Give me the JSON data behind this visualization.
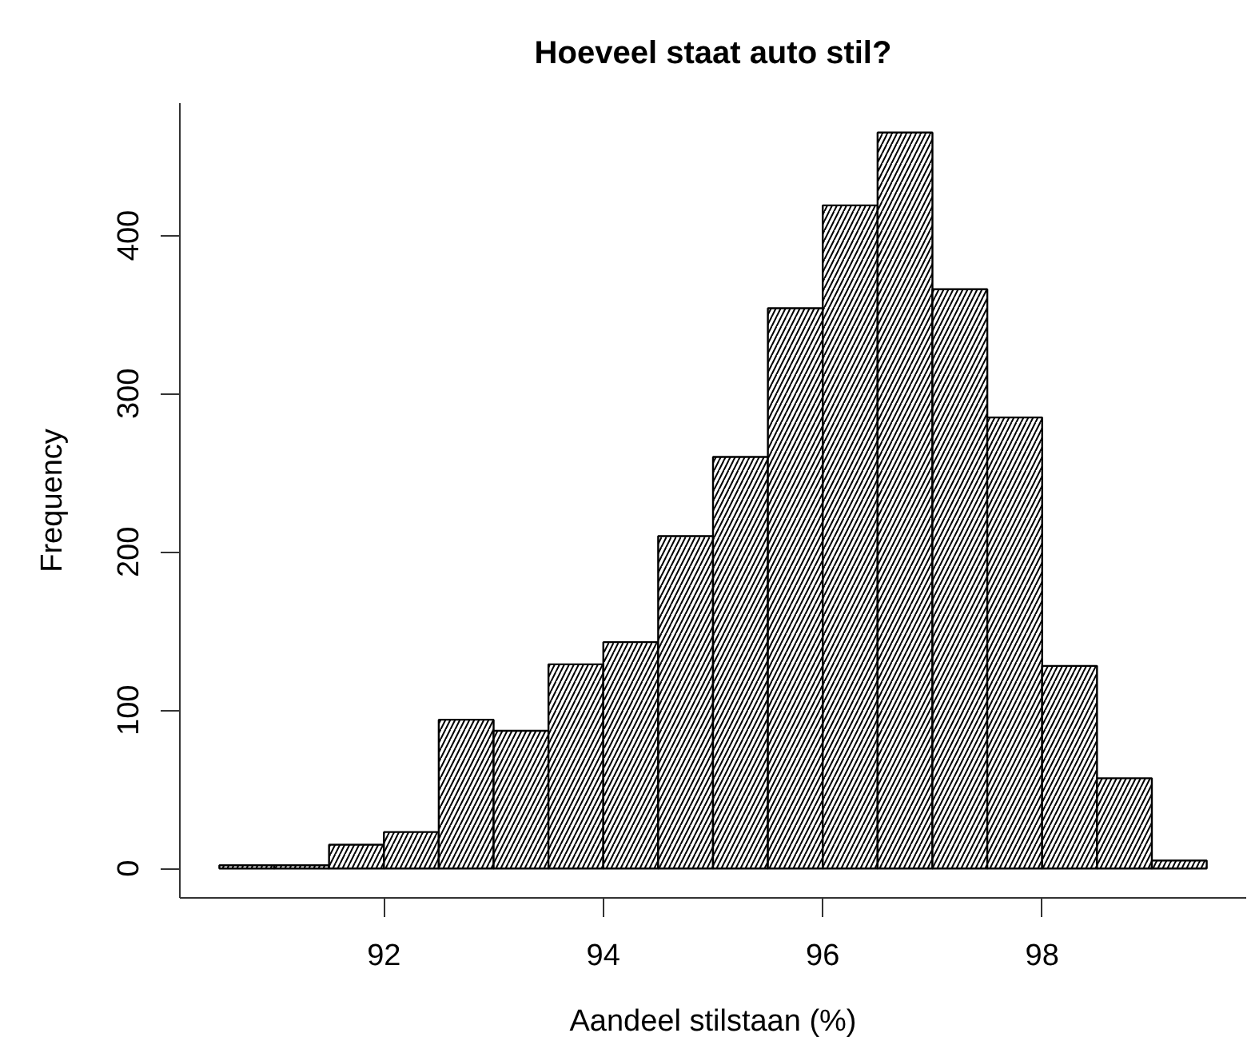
{
  "chart_data": {
    "type": "histogram",
    "title": "Hoeveel staat auto stil?",
    "xlabel": "Aandeel stilstaan (%)",
    "ylabel": "Frequency",
    "bins": [
      90.5,
      91.0,
      91.5,
      92.0,
      92.5,
      93.0,
      93.5,
      94.0,
      94.5,
      95.0,
      95.5,
      96.0,
      96.5,
      97.0,
      97.5,
      98.0,
      98.5,
      99.0,
      99.5
    ],
    "values": [
      2,
      2,
      15,
      23,
      94,
      87,
      129,
      143,
      210,
      260,
      354,
      419,
      465,
      366,
      285,
      128,
      57,
      5
    ],
    "color": "#000000",
    "xlim": [
      90.14,
      99.86
    ],
    "ylim": [
      -18.6,
      483.6
    ],
    "xticks": [
      92,
      94,
      96,
      98
    ],
    "yticks": [
      0,
      100,
      200,
      300,
      400
    ],
    "grid": false
  }
}
